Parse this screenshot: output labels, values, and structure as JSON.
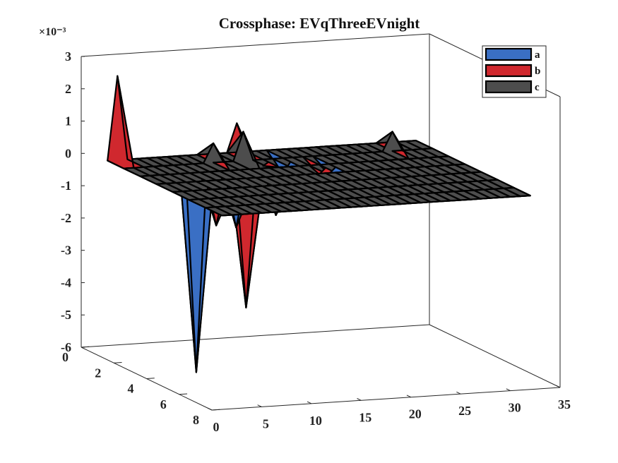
{
  "chart_data": {
    "type": "surface",
    "title": "Crossphase: EVqThreeEVnight",
    "z_exponent_label": "×10⁻³",
    "x_ticks": [
      "0",
      "5",
      "10",
      "15",
      "20",
      "25",
      "30",
      "35"
    ],
    "y_ticks": [
      "0",
      "2",
      "4",
      "6",
      "8"
    ],
    "z_ticks": [
      "3",
      "2",
      "1",
      "0",
      "-1",
      "-2",
      "-3",
      "-4",
      "-5",
      "-6"
    ],
    "xlim": [
      0,
      35
    ],
    "ylim": [
      0,
      8
    ],
    "zlim": [
      -0.006,
      0.003
    ],
    "grid_x": [
      1,
      32
    ],
    "grid_y": [
      1,
      8
    ],
    "legend": {
      "position": "top-right"
    },
    "series": [
      {
        "name": "a",
        "color": "#3a6fc4",
        "peaks": [
          {
            "x": 5,
            "y": 4,
            "z": -0.0059
          },
          {
            "x": 9,
            "y": 4,
            "z": -0.0015
          },
          {
            "x": 13,
            "y": 4,
            "z": -0.0012
          },
          {
            "x": 17,
            "y": 2,
            "z": -0.0005
          },
          {
            "x": 20,
            "y": 3,
            "z": -0.0003
          }
        ]
      },
      {
        "name": "b",
        "color": "#d0282e",
        "peaks": [
          {
            "x": 2,
            "y": 1,
            "z": 0.0026
          },
          {
            "x": 7,
            "y": 4,
            "z": -0.0014
          },
          {
            "x": 10,
            "y": 4,
            "z": -0.004
          },
          {
            "x": 14,
            "y": 1,
            "z": 0.0009
          },
          {
            "x": 15,
            "y": 2,
            "z": -0.0002
          },
          {
            "x": 19,
            "y": 3,
            "z": -0.0003
          }
        ]
      },
      {
        "name": "c",
        "color": "#4d4d4d",
        "peaks": [
          {
            "x": 10,
            "y": 2,
            "z": 0.0006
          },
          {
            "x": 13,
            "y": 2,
            "z": 0.0009
          },
          {
            "x": 28,
            "y": 2,
            "z": 0.0006
          }
        ]
      }
    ]
  }
}
